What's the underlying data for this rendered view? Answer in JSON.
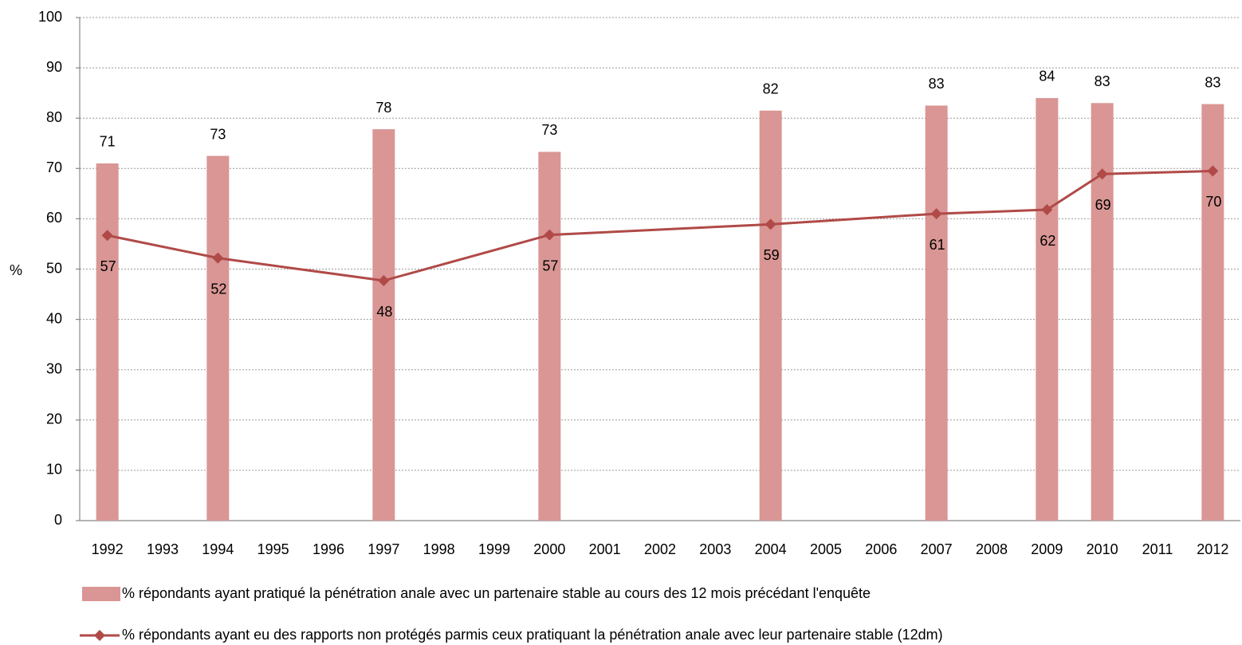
{
  "chart_data": {
    "type": "bar+line",
    "y_label": "%",
    "xlim": [
      1991.5,
      2012.5
    ],
    "xticks": [
      1992,
      1993,
      1994,
      1995,
      1996,
      1997,
      1998,
      1999,
      2000,
      2001,
      2002,
      2003,
      2004,
      2005,
      2006,
      2007,
      2008,
      2009,
      2010,
      2011,
      2012
    ],
    "ylim": [
      0,
      100
    ],
    "yticks": [
      0,
      10,
      20,
      30,
      40,
      50,
      60,
      70,
      80,
      90,
      100
    ],
    "grid": true,
    "legend": "bottom",
    "series": [
      {
        "name": "% répondants ayant pratiqué la pénétration anale avec un partenaire stable au cours des 12 mois précédant l'enquête",
        "type": "bar",
        "color": "#d99694",
        "x": [
          1992,
          1994,
          1997,
          2000,
          2004,
          2007,
          2009,
          2010,
          2012
        ],
        "values": [
          71,
          72.5,
          77.8,
          73.3,
          81.5,
          82.5,
          84,
          83,
          82.8
        ],
        "value_labels": [
          "71",
          "73",
          "78",
          "73",
          "82",
          "83",
          "84",
          "83",
          "83"
        ]
      },
      {
        "name": "% répondants ayant eu des rapports non protégés parmis ceux pratiquant la pénétration anale avec leur partenaire stable (12dm)",
        "type": "line",
        "color": "#b04a48",
        "x": [
          1992,
          1994,
          1997,
          2000,
          2004,
          2007,
          2009,
          2010,
          2012
        ],
        "values": [
          56.7,
          52.2,
          47.7,
          56.8,
          58.9,
          61,
          61.8,
          68.9,
          69.5
        ],
        "value_labels": [
          "57",
          "52",
          "48",
          "57",
          "59",
          "61",
          "62",
          "69",
          "70"
        ]
      }
    ]
  }
}
